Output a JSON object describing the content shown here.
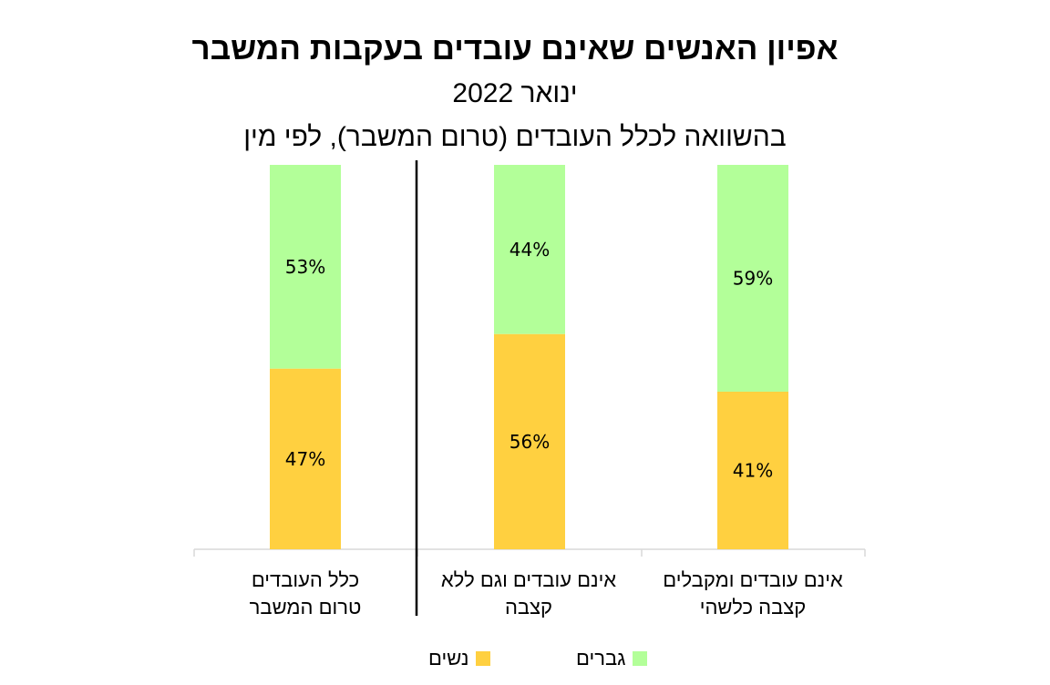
{
  "chart_data": {
    "type": "bar",
    "stacked": true,
    "title": "אפיון האנשים שאינם עובדים בעקבות המשבר",
    "subtitle": "ינואר 2022",
    "subtitle2": "בהשוואה לכלל העובדים (טרום המשבר), לפי מין",
    "categories": [
      "אינם עובדים ומקבלים קצבה כלשהי",
      "אינם עובדים וגם ללא קצבה",
      "כלל העובדים טרום המשבר"
    ],
    "series": [
      {
        "name": "נשים",
        "values": [
          41,
          56,
          47
        ],
        "labels": [
          "41%",
          "56%",
          "47%"
        ],
        "color": "#FFD040"
      },
      {
        "name": "גברים",
        "values": [
          59,
          44,
          53
        ],
        "labels": [
          "59%",
          "44%",
          "53%"
        ],
        "color": "#B3FF99"
      }
    ],
    "ylim": [
      0,
      100
    ],
    "grid": false,
    "legend": "bottom"
  },
  "category_lines": [
    [
      "אינם עובדים ומקבלים",
      "קצבה כלשהי"
    ],
    [
      "אינם עובדים וגם ללא",
      "קצבה"
    ],
    [
      "כלל העובדים",
      "טרום המשבר"
    ]
  ]
}
